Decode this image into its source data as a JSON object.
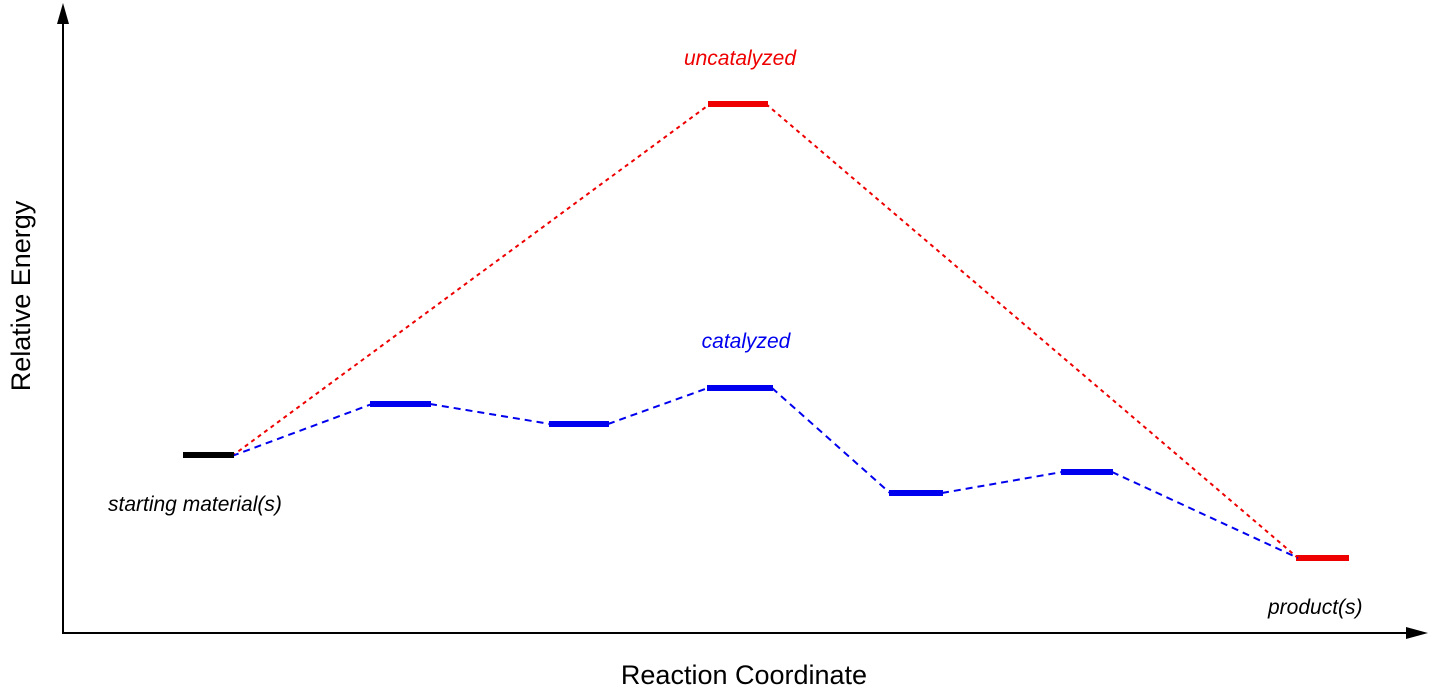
{
  "axes": {
    "x_label": "Reaction Coordinate",
    "y_label": "Relative Energy"
  },
  "labels": {
    "uncatalyzed": "uncatalyzed",
    "catalyzed": "catalyzed",
    "start": "starting material(s)",
    "product": "product(s)"
  },
  "colors": {
    "axis": "#000000",
    "start_level": "#000000",
    "uncatalyzed": "#ee0000",
    "catalyzed": "#0000ee"
  }
}
